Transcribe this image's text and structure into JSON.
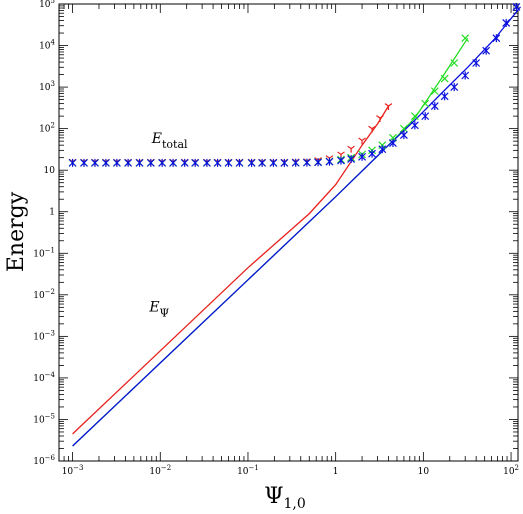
{
  "chart_data": {
    "type": "line",
    "xlabel": "Ψ",
    "xlabel_sub": "1,0",
    "ylabel": "Energy",
    "xscale": "log",
    "yscale": "log",
    "xlim": [
      0.0007,
      120
    ],
    "ylim": [
      1e-06,
      100000
    ],
    "grid": false,
    "x_ticks": [
      {
        "value": 0.001,
        "base": "10",
        "exp": "−3"
      },
      {
        "value": 0.01,
        "base": "10",
        "exp": "−2"
      },
      {
        "value": 0.1,
        "base": "10",
        "exp": "−1"
      },
      {
        "value": 1,
        "base": "1",
        "exp": ""
      },
      {
        "value": 10,
        "base": "10",
        "exp": ""
      },
      {
        "value": 100,
        "base": "10",
        "exp": "2"
      }
    ],
    "y_ticks": [
      {
        "value": 1e-06,
        "base": "10",
        "exp": "−6"
      },
      {
        "value": 1e-05,
        "base": "10",
        "exp": "−5"
      },
      {
        "value": 0.0001,
        "base": "10",
        "exp": "−4"
      },
      {
        "value": 0.001,
        "base": "10",
        "exp": "−3"
      },
      {
        "value": 0.01,
        "base": "10",
        "exp": "−2"
      },
      {
        "value": 0.1,
        "base": "10",
        "exp": "−1"
      },
      {
        "value": 1,
        "base": "1",
        "exp": ""
      },
      {
        "value": 10,
        "base": "10",
        "exp": ""
      },
      {
        "value": 100,
        "base": "10",
        "exp": "2"
      },
      {
        "value": 1000,
        "base": "10",
        "exp": "3"
      },
      {
        "value": 10000,
        "base": "10",
        "exp": "4"
      },
      {
        "value": 100000,
        "base": "10",
        "exp": "5"
      }
    ],
    "annotations": [
      {
        "main": "E",
        "sub": "total",
        "x": 0.008,
        "y": 45
      },
      {
        "main": "E",
        "sub": "Ψ",
        "x": 0.0075,
        "y": 0.004
      }
    ],
    "lines": [
      {
        "color": "#e8201c",
        "x": [
          0.001,
          0.01,
          0.1,
          0.5,
          1,
          2,
          3,
          4
        ],
        "y": [
          4.5e-06,
          0.00045,
          0.045,
          0.9,
          4.5,
          40,
          130,
          350
        ]
      },
      {
        "color": "#22dd22",
        "x": [
          0.001,
          0.01,
          0.1,
          1,
          4,
          8,
          16,
          32
        ],
        "y": [
          2.3e-06,
          0.00023,
          0.023,
          2.3,
          40,
          180,
          1600,
          15000
        ]
      },
      {
        "color": "#0a10dd",
        "x": [
          0.001,
          0.01,
          0.1,
          1,
          4,
          8,
          16,
          32,
          64,
          128
        ],
        "y": [
          2.3e-06,
          0.00023,
          0.023,
          2.3,
          40,
          160,
          700,
          3000,
          14000,
          85000
        ]
      }
    ],
    "marker_series": [
      {
        "color": "#e8201c",
        "marker": "tri",
        "x": [
          0.001,
          0.00135,
          0.0018,
          0.0024,
          0.0032,
          0.0043,
          0.0058,
          0.0078,
          0.0105,
          0.014,
          0.019,
          0.025,
          0.034,
          0.045,
          0.06,
          0.08,
          0.11,
          0.145,
          0.195,
          0.26,
          0.35,
          0.47,
          0.63,
          0.85,
          1.15,
          1.5,
          2.0,
          2.6,
          3.2,
          4.0
        ],
        "y": [
          16,
          16,
          16,
          16,
          16,
          16,
          16,
          16,
          16,
          16,
          16,
          16,
          16,
          16,
          16,
          16,
          16,
          16,
          16,
          16,
          16.2,
          16.5,
          17.5,
          19.5,
          24,
          33,
          52,
          100,
          180,
          350
        ]
      },
      {
        "color": "#22dd22",
        "marker": "x",
        "x": [
          0.001,
          0.00135,
          0.0018,
          0.0024,
          0.0032,
          0.0043,
          0.0058,
          0.0078,
          0.0105,
          0.014,
          0.019,
          0.025,
          0.034,
          0.045,
          0.06,
          0.08,
          0.11,
          0.145,
          0.195,
          0.26,
          0.35,
          0.47,
          0.63,
          0.85,
          1.15,
          1.5,
          2.0,
          2.6,
          3.4,
          4.5,
          6,
          8,
          10.5,
          13.5,
          17.5,
          22.5,
          30
        ],
        "y": [
          15,
          15,
          15,
          15,
          15,
          15,
          15,
          15,
          15,
          15,
          15,
          15,
          15,
          15,
          15,
          15,
          15,
          15,
          15,
          15,
          15.1,
          15.3,
          15.7,
          16.3,
          18,
          20,
          24,
          30,
          40,
          60,
          100,
          200,
          400,
          800,
          1600,
          3800,
          15000
        ]
      },
      {
        "color": "#0a10dd",
        "marker": "star",
        "x": [
          0.001,
          0.00135,
          0.0018,
          0.0024,
          0.0032,
          0.0043,
          0.0058,
          0.0078,
          0.0105,
          0.014,
          0.019,
          0.025,
          0.034,
          0.045,
          0.06,
          0.08,
          0.11,
          0.145,
          0.195,
          0.26,
          0.35,
          0.47,
          0.63,
          0.85,
          1.15,
          1.5,
          2.0,
          2.6,
          3.4,
          4.5,
          6,
          8,
          10.5,
          13.5,
          17.5,
          22.5,
          30,
          40,
          52,
          68,
          88,
          115
        ],
        "y": [
          15,
          15,
          15,
          15,
          15,
          15,
          15,
          15,
          15,
          15,
          15,
          15,
          15,
          15,
          15,
          15,
          15,
          15,
          15,
          15,
          15.1,
          15.2,
          15.5,
          16,
          17,
          18.5,
          21,
          25,
          32,
          45,
          70,
          120,
          200,
          350,
          600,
          1000,
          1900,
          3800,
          7500,
          15000,
          35000,
          85000
        ]
      }
    ]
  }
}
